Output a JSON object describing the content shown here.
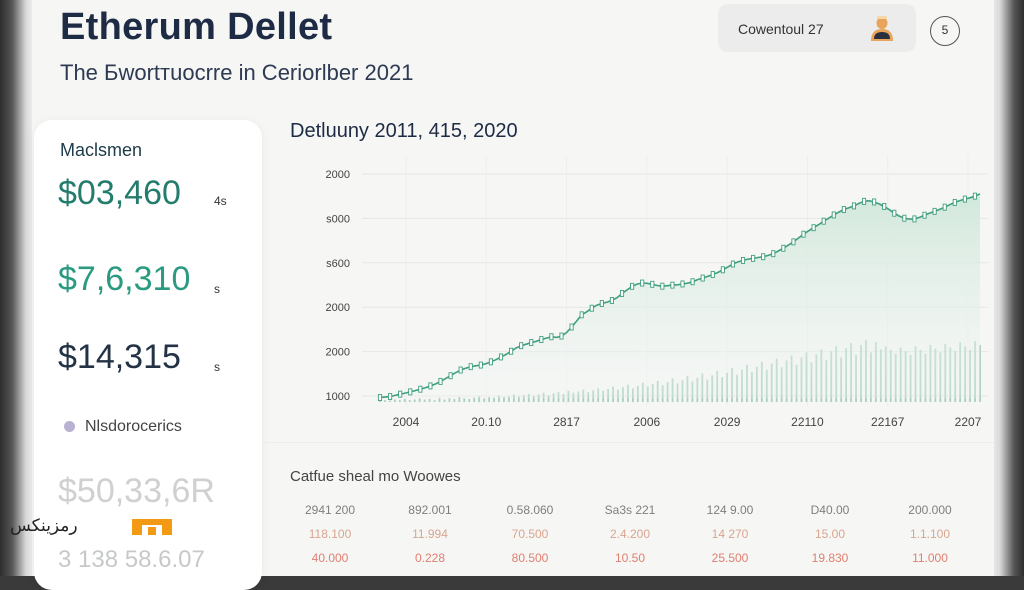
{
  "header": {
    "title": "Etherum Dellet",
    "subtitle": "The Бwortтuocrre in Ceriorlber 2021",
    "account_label": "Cowentoul 27",
    "badge": "5"
  },
  "sidebar": {
    "heading": "Maclsmen",
    "values": [
      {
        "amount": "$03,460",
        "unit": "4s"
      },
      {
        "amount": "$7,6,310",
        "unit": "s"
      },
      {
        "amount": "$14,315",
        "unit": "s"
      }
    ],
    "legend_label": "Nlsdorocerics",
    "faded_value": "$50,33,6R",
    "faded_value2": "3 138 58.6.07"
  },
  "chart_data": {
    "type": "line",
    "title": "Detluuny 2011, 415, 2020",
    "y_tick_labels": [
      "2000",
      "s000",
      "s600",
      "2000",
      "2000",
      "1000"
    ],
    "x_tick_labels": [
      "2004",
      "20.10",
      "2817",
      "2006",
      "2029",
      "22110",
      "22167",
      "2207"
    ],
    "series": [
      {
        "name": "price",
        "values": [
          0.4,
          0.8,
          1.2,
          2.2,
          3.3,
          4.2,
          5.3,
          6.4,
          7.6,
          8.8,
          10.4,
          12.1,
          14.3,
          16.7,
          19.2,
          21.8,
          24.1,
          25.7,
          27.0,
          27.8,
          28.4,
          29.6,
          31.2,
          33.0,
          35.4,
          37.6,
          40.3,
          43.1,
          45.1,
          46.4,
          47.8,
          48.9,
          50.4,
          51.6,
          52.8,
          52.2,
          53.4,
          56.5,
          61.2,
          66.3,
          71.7,
          74.3,
          77.4,
          80.0,
          81.5,
          82.6,
          84.1,
          86.5,
          90.1,
          93.2,
          96.3,
          98.2,
          99.1,
          98.9,
          98.0,
          97.0,
          96.4,
          96.8,
          97.3,
          97.6,
          98.3,
          99.0,
          100.2,
          102.1,
          103.4,
          104.8,
          106.5,
          108.2,
          110.5,
          113.0,
          115.5,
          117.3,
          118.6,
          119.7,
          120.4,
          121.1,
          121.8,
          122.9,
          124.4,
          126.7,
          129.1,
          131.8,
          134.6,
          137.9,
          141.2,
          144.1,
          146.8,
          149.5,
          152.4,
          155.0,
          157.8,
          160.3,
          162.5,
          164.0,
          165.6,
          167.8,
          169.5,
          170.1,
          169.0,
          167.3,
          165.1,
          162.4,
          159.3,
          156.8,
          155.0,
          154.2,
          154.4,
          155.7,
          157.6,
          159.4,
          160.9,
          162.6,
          164.5,
          166.6,
          168.6,
          170.2,
          171.5,
          172.6,
          174.0,
          176.0
        ]
      }
    ],
    "volume": {
      "name": "volume",
      "values": [
        2,
        3,
        2,
        4,
        3,
        5,
        3,
        4,
        6,
        4,
        5,
        3,
        7,
        4,
        6,
        5,
        8,
        6,
        5,
        7,
        9,
        6,
        8,
        7,
        10,
        8,
        9,
        12,
        9,
        11,
        13,
        10,
        12,
        15,
        11,
        14,
        16,
        13,
        18,
        15,
        17,
        20,
        16,
        19,
        22,
        18,
        21,
        25,
        20,
        24,
        28,
        22,
        26,
        31,
        25,
        29,
        34,
        27,
        32,
        38,
        30,
        35,
        42,
        33,
        39,
        46,
        36,
        43,
        50,
        40,
        47,
        55,
        44,
        52,
        60,
        48,
        57,
        65,
        52,
        62,
        70,
        56,
        67,
        75,
        60,
        72,
        80,
        64,
        77,
        85,
        68,
        82,
        90,
        72,
        87,
        95,
        76,
        92,
        100,
        80,
        97,
        85,
        90,
        84,
        78,
        88,
        82,
        76,
        90,
        84,
        78,
        92,
        86,
        80,
        94,
        88,
        82,
        96,
        90,
        84,
        98,
        92
      ]
    },
    "ylim": [
      0,
      200
    ],
    "grid": true
  },
  "bottom_table": {
    "title": "Catfue sheal mo Woowes",
    "rows": [
      [
        "2941 200",
        "892.001",
        "0.58.060",
        "Sa3s 221",
        "124 9.00",
        "D40.00",
        "200.000"
      ],
      [
        "118.100",
        "11.994",
        "70.500",
        "2.4.200",
        "14 270",
        "15.00",
        "1.1.100"
      ],
      [
        "40.000",
        "0.228",
        "80.500",
        "10.50",
        "25.500",
        "19.830",
        "11.000"
      ]
    ]
  },
  "watermark": {
    "text": "رمزینکس"
  },
  "colors": {
    "accent": "#2a9a80",
    "line": "#3f9f7e",
    "area": "#d9ede3",
    "text_dark": "#1d2b45"
  }
}
